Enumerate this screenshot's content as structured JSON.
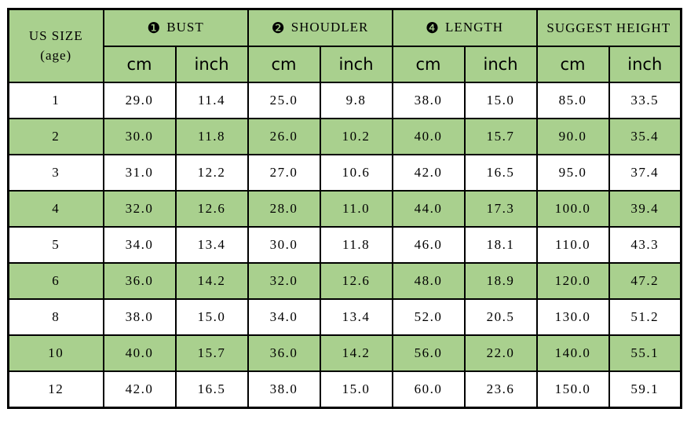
{
  "table": {
    "corner": {
      "line1": "US SIZE",
      "line2": "(age)"
    },
    "groups": [
      {
        "badge": "❶",
        "label": "BUST"
      },
      {
        "badge": "❷",
        "label": "SHOUDLER"
      },
      {
        "badge": "❹",
        "label": "LENGTH"
      },
      {
        "badge": "",
        "label": "SUGGEST HEIGHT"
      }
    ],
    "units": [
      "cm",
      "inch",
      "cm",
      "inch",
      "cm",
      "inch",
      "cm",
      "inch"
    ],
    "rows": [
      {
        "size": "1",
        "bust_cm": "29.0",
        "bust_in": "11.4",
        "shoulder_cm": "25.0",
        "shoulder_in": "9.8",
        "length_cm": "38.0",
        "length_in": "15.0",
        "height_cm": "85.0",
        "height_in": "33.5",
        "shaded": false
      },
      {
        "size": "2",
        "bust_cm": "30.0",
        "bust_in": "11.8",
        "shoulder_cm": "26.0",
        "shoulder_in": "10.2",
        "length_cm": "40.0",
        "length_in": "15.7",
        "height_cm": "90.0",
        "height_in": "35.4",
        "shaded": true
      },
      {
        "size": "3",
        "bust_cm": "31.0",
        "bust_in": "12.2",
        "shoulder_cm": "27.0",
        "shoulder_in": "10.6",
        "length_cm": "42.0",
        "length_in": "16.5",
        "height_cm": "95.0",
        "height_in": "37.4",
        "shaded": false
      },
      {
        "size": "4",
        "bust_cm": "32.0",
        "bust_in": "12.6",
        "shoulder_cm": "28.0",
        "shoulder_in": "11.0",
        "length_cm": "44.0",
        "length_in": "17.3",
        "height_cm": "100.0",
        "height_in": "39.4",
        "shaded": true
      },
      {
        "size": "5",
        "bust_cm": "34.0",
        "bust_in": "13.4",
        "shoulder_cm": "30.0",
        "shoulder_in": "11.8",
        "length_cm": "46.0",
        "length_in": "18.1",
        "height_cm": "110.0",
        "height_in": "43.3",
        "shaded": false
      },
      {
        "size": "6",
        "bust_cm": "36.0",
        "bust_in": "14.2",
        "shoulder_cm": "32.0",
        "shoulder_in": "12.6",
        "length_cm": "48.0",
        "length_in": "18.9",
        "height_cm": "120.0",
        "height_in": "47.2",
        "shaded": true
      },
      {
        "size": "8",
        "bust_cm": "38.0",
        "bust_in": "15.0",
        "shoulder_cm": "34.0",
        "shoulder_in": "13.4",
        "length_cm": "52.0",
        "length_in": "20.5",
        "height_cm": "130.0",
        "height_in": "51.2",
        "shaded": false
      },
      {
        "size": "10",
        "bust_cm": "40.0",
        "bust_in": "15.7",
        "shoulder_cm": "36.0",
        "shoulder_in": "14.2",
        "length_cm": "56.0",
        "length_in": "22.0",
        "height_cm": "140.0",
        "height_in": "55.1",
        "shaded": true
      },
      {
        "size": "12",
        "bust_cm": "42.0",
        "bust_in": "16.5",
        "shoulder_cm": "38.0",
        "shoulder_in": "15.0",
        "length_cm": "60.0",
        "length_in": "23.6",
        "height_cm": "150.0",
        "height_in": "59.1",
        "shaded": false
      }
    ],
    "colors": {
      "shaded_row": "#a9d08e",
      "plain_row": "#ffffff",
      "border": "#000000",
      "text": "#000000"
    }
  },
  "chart_data": {
    "type": "table",
    "title": "Size chart (US size by age)",
    "columns": [
      "US SIZE (age)",
      "BUST cm",
      "BUST inch",
      "SHOUDLER cm",
      "SHOUDLER inch",
      "LENGTH cm",
      "LENGTH inch",
      "SUGGEST HEIGHT cm",
      "SUGGEST HEIGHT inch"
    ],
    "rows": [
      [
        "1",
        29.0,
        11.4,
        25.0,
        9.8,
        38.0,
        15.0,
        85.0,
        33.5
      ],
      [
        "2",
        30.0,
        11.8,
        26.0,
        10.2,
        40.0,
        15.7,
        90.0,
        35.4
      ],
      [
        "3",
        31.0,
        12.2,
        27.0,
        10.6,
        42.0,
        16.5,
        95.0,
        37.4
      ],
      [
        "4",
        32.0,
        12.6,
        28.0,
        11.0,
        44.0,
        17.3,
        100.0,
        39.4
      ],
      [
        "5",
        34.0,
        13.4,
        30.0,
        11.8,
        46.0,
        18.1,
        110.0,
        43.3
      ],
      [
        "6",
        36.0,
        14.2,
        32.0,
        12.6,
        48.0,
        18.9,
        120.0,
        47.2
      ],
      [
        "8",
        38.0,
        15.0,
        34.0,
        13.4,
        52.0,
        20.5,
        130.0,
        51.2
      ],
      [
        "10",
        40.0,
        15.7,
        36.0,
        14.2,
        56.0,
        22.0,
        140.0,
        55.1
      ],
      [
        "12",
        42.0,
        16.5,
        38.0,
        15.0,
        60.0,
        23.6,
        150.0,
        59.1
      ]
    ]
  }
}
